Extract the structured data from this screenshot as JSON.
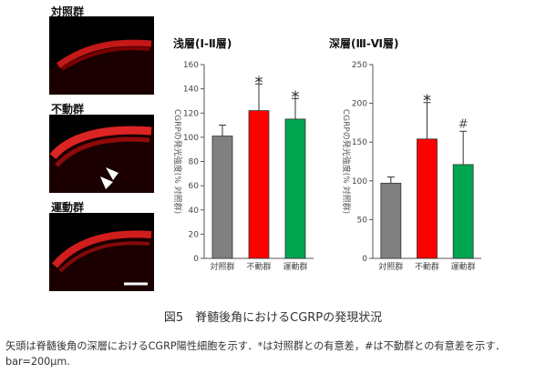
{
  "micrographs": [
    {
      "label": "対照群"
    },
    {
      "label": "不動群"
    },
    {
      "label": "運動群"
    }
  ],
  "figure_caption": "図5　脊髄後角におけるCGRPの発現状況",
  "footnote_line1": "矢頭は脊髄後角の深層におけるCGRP陽性細胞を示す．*は対照群との有意差，#は不動群との有意差を示す．",
  "footnote_line2": "bar=200μm.",
  "colors": {
    "control": "#808080",
    "immobilized": "#ff0000",
    "exercise": "#00a550"
  },
  "chart_data": [
    {
      "type": "bar",
      "title": "浅層(Ⅰ-Ⅱ層)",
      "ylabel": "CGRPの発光強度(% 対照群)",
      "categories": [
        "対照群",
        "不動群",
        "運動群"
      ],
      "values": [
        101,
        122,
        115
      ],
      "errors": [
        9,
        22,
        17
      ],
      "annotations": [
        "",
        "*",
        "*"
      ],
      "ylim": [
        0,
        160
      ],
      "yticks": [
        0,
        20,
        40,
        60,
        80,
        100,
        120,
        140,
        160
      ]
    },
    {
      "type": "bar",
      "title": "深層(Ⅲ-Ⅵ層)",
      "ylabel": "CGRPの発光強度(% 対照群)",
      "categories": [
        "対照群",
        "不動群",
        "運動群"
      ],
      "values": [
        97,
        154,
        121
      ],
      "errors": [
        8,
        47,
        43
      ],
      "annotations": [
        "",
        "*",
        "#"
      ],
      "ylim": [
        0,
        250
      ],
      "yticks": [
        0,
        50,
        100,
        150,
        200,
        250
      ]
    }
  ]
}
